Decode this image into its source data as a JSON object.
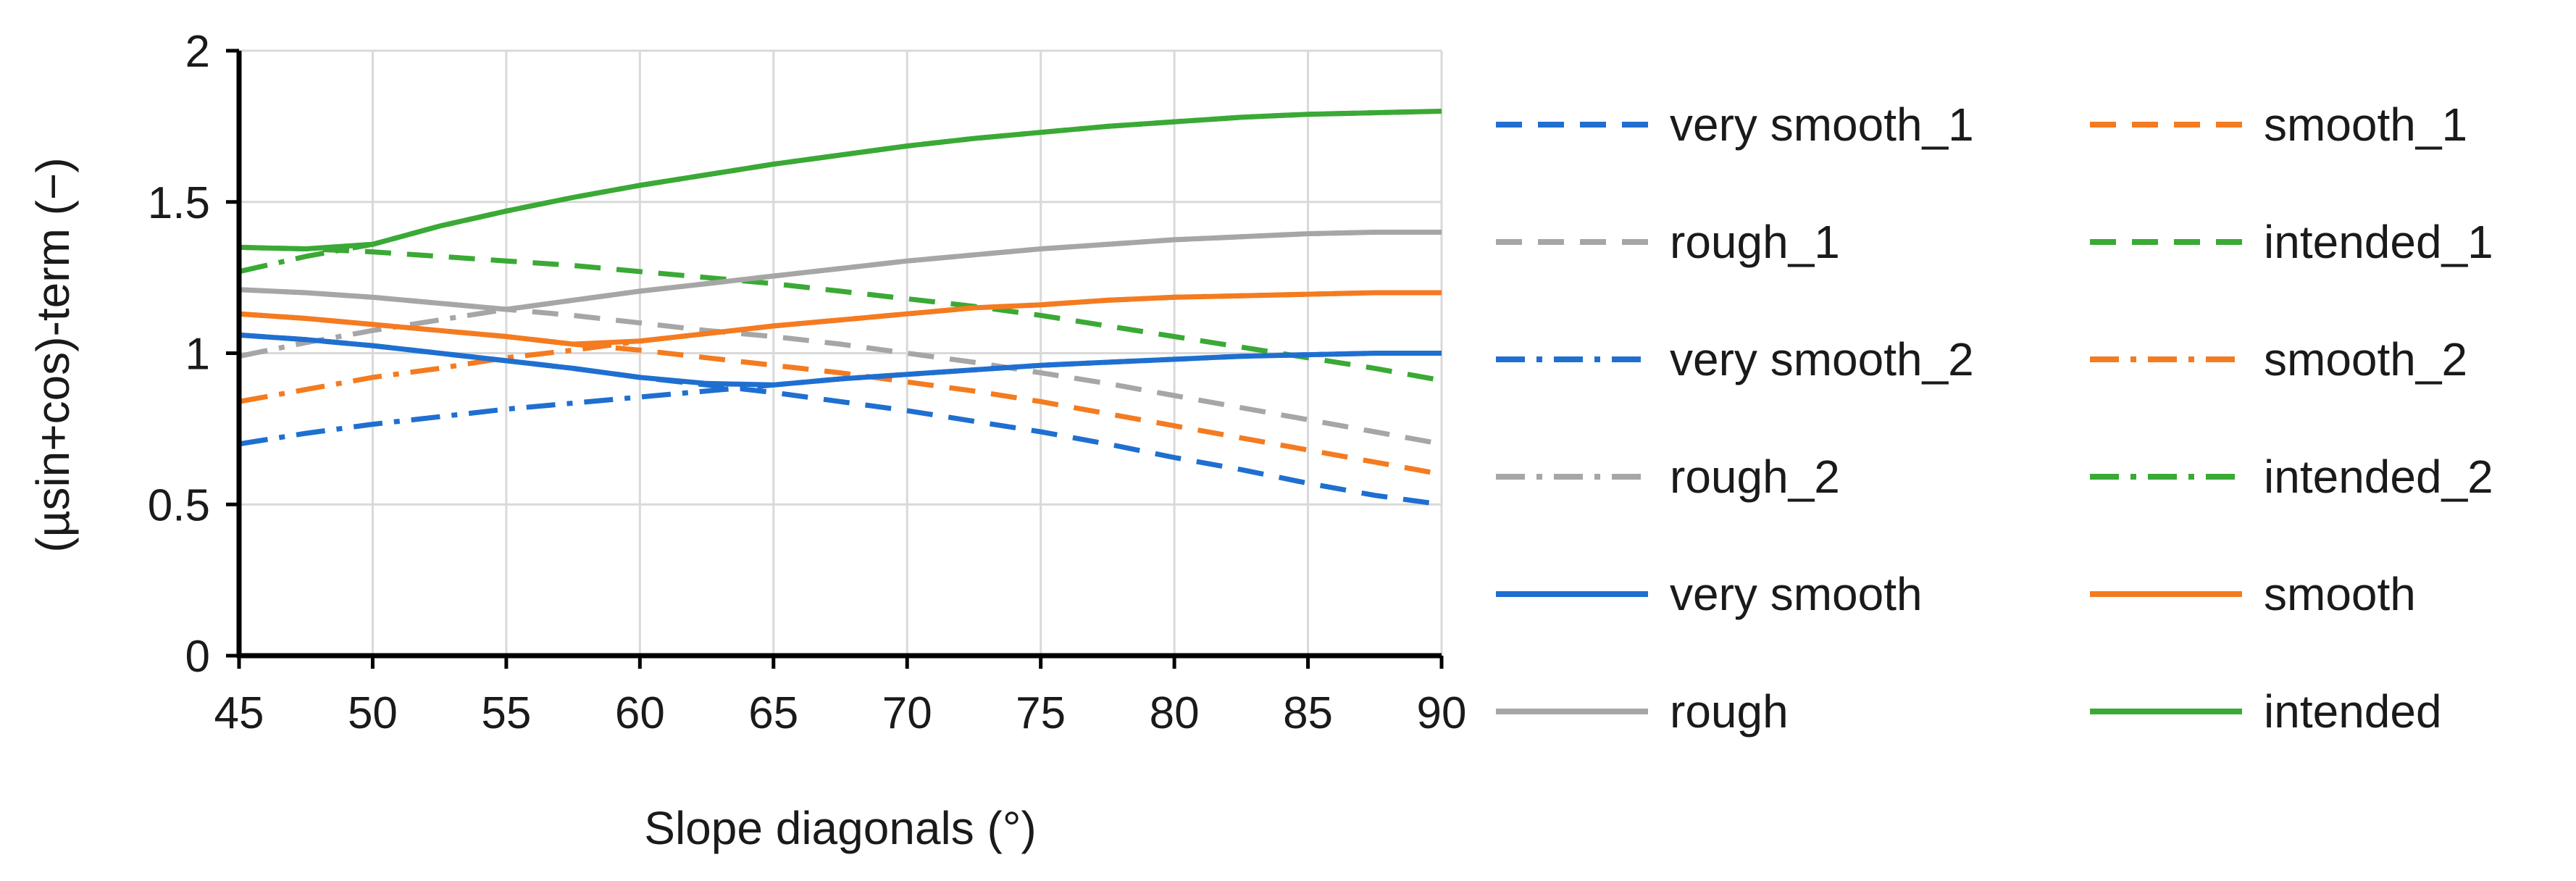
{
  "chart_data": {
    "type": "line",
    "xlabel": "Slope diagonals (°)",
    "ylabel": "(µsin+cos)-term (−)",
    "xlim": [
      45,
      90
    ],
    "ylim": [
      0,
      2
    ],
    "xticks": [
      45,
      50,
      55,
      60,
      65,
      70,
      75,
      80,
      85,
      90
    ],
    "yticks": [
      0,
      0.5,
      1,
      1.5,
      2
    ],
    "ytick_labels": [
      "0",
      "0.5",
      "1",
      "1.5",
      "2"
    ],
    "grid": "vertical-and-horizontal",
    "legend_position": "right",
    "legend_columns": 2,
    "x": [
      45,
      47.5,
      50,
      52.5,
      55,
      57.5,
      60,
      62.5,
      65,
      67.5,
      70,
      72.5,
      75,
      77.5,
      80,
      82.5,
      85,
      87.5,
      90
    ],
    "series": [
      {
        "name": "very smooth_1",
        "color": "#1f6fd1",
        "dash": "dash",
        "values": [
          1.06,
          1.045,
          1.025,
          1.0,
          0.975,
          0.95,
          0.92,
          0.895,
          0.87,
          0.84,
          0.81,
          0.775,
          0.74,
          0.7,
          0.655,
          0.615,
          0.57,
          0.53,
          0.5
        ]
      },
      {
        "name": "smooth_1",
        "color": "#f47b20",
        "dash": "dash",
        "values": [
          1.13,
          1.115,
          1.095,
          1.075,
          1.055,
          1.03,
          1.01,
          0.985,
          0.96,
          0.935,
          0.905,
          0.875,
          0.84,
          0.8,
          0.76,
          0.72,
          0.68,
          0.64,
          0.6
        ]
      },
      {
        "name": "rough_1",
        "color": "#a6a6a6",
        "dash": "dash",
        "values": [
          1.21,
          1.2,
          1.185,
          1.165,
          1.145,
          1.125,
          1.1,
          1.075,
          1.055,
          1.03,
          1.0,
          0.97,
          0.935,
          0.9,
          0.86,
          0.82,
          0.78,
          0.74,
          0.7
        ]
      },
      {
        "name": "intended_1",
        "color": "#3aa935",
        "dash": "dash",
        "values": [
          1.35,
          1.345,
          1.335,
          1.32,
          1.305,
          1.29,
          1.27,
          1.25,
          1.23,
          1.205,
          1.18,
          1.155,
          1.125,
          1.09,
          1.055,
          1.02,
          0.985,
          0.95,
          0.91
        ]
      },
      {
        "name": "very smooth_2",
        "color": "#1f6fd1",
        "dash": "dashdot",
        "values": [
          0.7,
          0.735,
          0.765,
          0.79,
          0.815,
          0.835,
          0.855,
          0.875,
          0.895,
          0.915,
          0.93,
          0.945,
          0.96,
          0.97,
          0.98,
          0.99,
          0.995,
          1.0,
          1.0
        ]
      },
      {
        "name": "smooth_2",
        "color": "#f47b20",
        "dash": "dashdot",
        "values": [
          0.84,
          0.88,
          0.92,
          0.95,
          0.985,
          1.01,
          1.04,
          1.065,
          1.09,
          1.11,
          1.13,
          1.15,
          1.16,
          1.175,
          1.185,
          1.19,
          1.195,
          1.2,
          1.2
        ]
      },
      {
        "name": "rough_2",
        "color": "#a6a6a6",
        "dash": "dashdot",
        "values": [
          0.99,
          1.035,
          1.075,
          1.11,
          1.145,
          1.175,
          1.205,
          1.23,
          1.255,
          1.28,
          1.305,
          1.325,
          1.345,
          1.36,
          1.375,
          1.385,
          1.395,
          1.4,
          1.4
        ]
      },
      {
        "name": "intended_2",
        "color": "#3aa935",
        "dash": "dashdot",
        "values": [
          1.27,
          1.32,
          1.36,
          1.42,
          1.47,
          1.515,
          1.555,
          1.59,
          1.625,
          1.655,
          1.685,
          1.71,
          1.73,
          1.75,
          1.765,
          1.78,
          1.79,
          1.795,
          1.8
        ]
      },
      {
        "name": "very smooth",
        "color": "#1f6fd1",
        "dash": "solid",
        "values": [
          1.06,
          1.045,
          1.025,
          1.0,
          0.975,
          0.95,
          0.92,
          0.9,
          0.895,
          0.915,
          0.93,
          0.945,
          0.96,
          0.97,
          0.98,
          0.99,
          0.995,
          1.0,
          1.0
        ]
      },
      {
        "name": "smooth",
        "color": "#f47b20",
        "dash": "solid",
        "values": [
          1.13,
          1.115,
          1.095,
          1.075,
          1.055,
          1.03,
          1.04,
          1.065,
          1.09,
          1.11,
          1.13,
          1.15,
          1.16,
          1.175,
          1.185,
          1.19,
          1.195,
          1.2,
          1.2
        ]
      },
      {
        "name": "rough",
        "color": "#a6a6a6",
        "dash": "solid",
        "values": [
          1.21,
          1.2,
          1.185,
          1.165,
          1.145,
          1.175,
          1.205,
          1.23,
          1.255,
          1.28,
          1.305,
          1.325,
          1.345,
          1.36,
          1.375,
          1.385,
          1.395,
          1.4,
          1.4
        ]
      },
      {
        "name": "intended",
        "color": "#3aa935",
        "dash": "solid",
        "values": [
          1.35,
          1.345,
          1.36,
          1.42,
          1.47,
          1.515,
          1.555,
          1.59,
          1.625,
          1.655,
          1.685,
          1.71,
          1.73,
          1.75,
          1.765,
          1.78,
          1.79,
          1.795,
          1.8
        ]
      }
    ]
  }
}
